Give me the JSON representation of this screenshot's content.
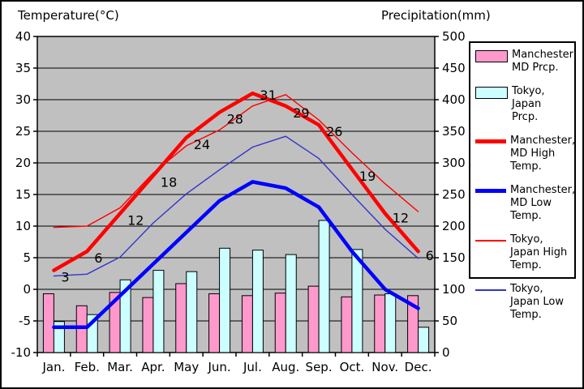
{
  "titles": {
    "left": "Temperature(°C)",
    "right": "Precipitation(mm)"
  },
  "legend": [
    {
      "label": "Manchester, MD Prcp.",
      "swatch": "bar",
      "color": "#FF99CC"
    },
    {
      "label": "Tokyo, Japan Prcp.",
      "swatch": "bar",
      "color": "#CCFFFF"
    },
    {
      "label": "Manchester, MD High Temp.",
      "swatch": "line-thick",
      "color": "#FF0000"
    },
    {
      "label": "Manchester, MD Low Temp.",
      "swatch": "line-thick",
      "color": "#0000FF"
    },
    {
      "label": "Tokyo, Japan High Temp.",
      "swatch": "line-thin",
      "color": "#FF0000"
    },
    {
      "label": "Tokyo, Japan Low Temp.",
      "swatch": "line-thin",
      "color": "#3333CC"
    }
  ],
  "chart_data": {
    "type": "combo",
    "categories": [
      "Jan.",
      "Feb.",
      "Mar.",
      "Apr.",
      "May",
      "Jun.",
      "Jul.",
      "Aug.",
      "Sep.",
      "Oct.",
      "Nov.",
      "Dec."
    ],
    "series": [
      {
        "name": "Manchester, MD Prcp.",
        "type": "bar",
        "axis": "right",
        "color": "#FF99CC",
        "values": [
          93,
          74,
          95,
          87,
          109,
          93,
          90,
          94,
          105,
          88,
          91,
          90
        ]
      },
      {
        "name": "Tokyo, Japan Prcp.",
        "type": "bar",
        "axis": "right",
        "color": "#CCFFFF",
        "values": [
          49,
          60,
          115,
          130,
          128,
          165,
          162,
          155,
          209,
          163,
          93,
          40
        ]
      },
      {
        "name": "Manchester, MD High Temp.",
        "type": "line",
        "axis": "left",
        "color": "#FF0000",
        "width": 4.5,
        "data_labels": true,
        "values": [
          3,
          6,
          12,
          18,
          24,
          28,
          31,
          29,
          26,
          19,
          12,
          6
        ]
      },
      {
        "name": "Manchester, MD Low Temp.",
        "type": "line",
        "axis": "left",
        "color": "#0000FF",
        "width": 4.5,
        "values": [
          -6,
          -6,
          -1,
          4,
          9,
          14,
          17,
          16,
          13,
          6,
          0,
          -3
        ]
      },
      {
        "name": "Tokyo, Japan High Temp.",
        "type": "line",
        "axis": "left",
        "color": "#FF0000",
        "width": 1.4,
        "values": [
          9.8,
          10.0,
          12.9,
          18.4,
          22.7,
          25.2,
          29.0,
          30.8,
          26.8,
          21.6,
          16.7,
          12.3
        ]
      },
      {
        "name": "Tokyo, Japan Low Temp.",
        "type": "line",
        "axis": "left",
        "color": "#3333CC",
        "width": 1.4,
        "values": [
          2.1,
          2.4,
          5.1,
          10.5,
          15.1,
          18.9,
          22.5,
          24.2,
          20.7,
          15.0,
          9.5,
          4.9
        ]
      }
    ],
    "left_axis": {
      "title": "Temperature(°C)",
      "min": -10,
      "max": 40,
      "step": 5,
      "ticks": [
        "40",
        "35",
        "30",
        "25",
        "20",
        "15",
        "10",
        "5",
        "0",
        "-5",
        "-10"
      ]
    },
    "right_axis": {
      "title": "Precipitation(mm)",
      "min": 0,
      "max": 500,
      "step": 50,
      "ticks": [
        "500",
        "450",
        "400",
        "350",
        "300",
        "250",
        "200",
        "150",
        "100",
        "50",
        "0"
      ]
    },
    "plot_background": "#C0C0C0",
    "grid": true,
    "legend_position": "right"
  }
}
